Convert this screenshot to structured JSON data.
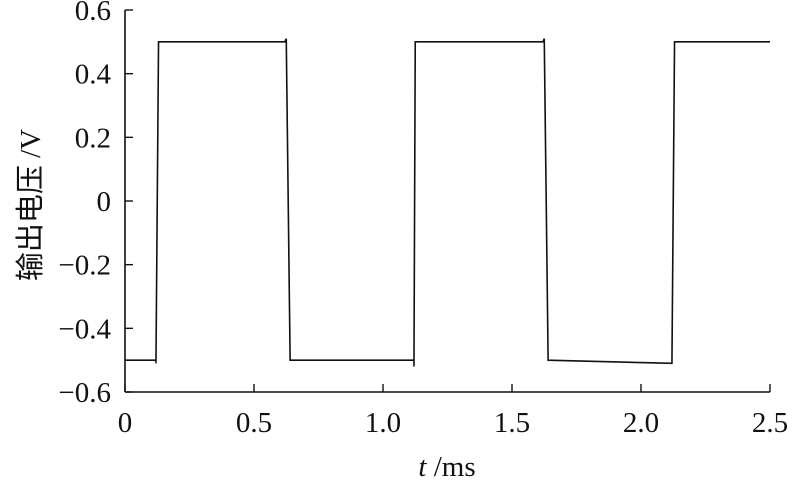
{
  "chart_data": {
    "type": "line",
    "xlabel_var": "t",
    "xlabel_unit": " /ms",
    "ylabel": "输出电压 /V",
    "xlim": [
      0,
      2.5
    ],
    "ylim": [
      -0.6,
      0.6
    ],
    "x_ticks": [
      0,
      0.5,
      1.0,
      1.5,
      2.0,
      2.5
    ],
    "x_tick_labels": [
      "0",
      "0.5",
      "1.0",
      "1.5",
      "2.0",
      "2.5"
    ],
    "y_ticks": [
      0.6,
      0.4,
      0.2,
      0,
      -0.2,
      -0.4,
      -0.6
    ],
    "y_tick_labels": [
      "0.6",
      "0.4",
      "0.2",
      "0",
      "−0.2",
      "−0.4",
      "−0.6"
    ],
    "grid": false,
    "series": [
      {
        "x": [
          0,
          0.12,
          0.12,
          0.13,
          0.62,
          0.625,
          0.64,
          1.12,
          1.12,
          1.125,
          1.62,
          1.625,
          1.64,
          2.12,
          2.12,
          2.13,
          2.5
        ],
        "y": [
          -0.5,
          -0.5,
          -0.51,
          0.5,
          0.5,
          0.51,
          -0.5,
          -0.5,
          -0.52,
          0.5,
          0.5,
          0.51,
          -0.5,
          -0.51,
          -0.5,
          0.5,
          0.5
        ]
      }
    ]
  }
}
